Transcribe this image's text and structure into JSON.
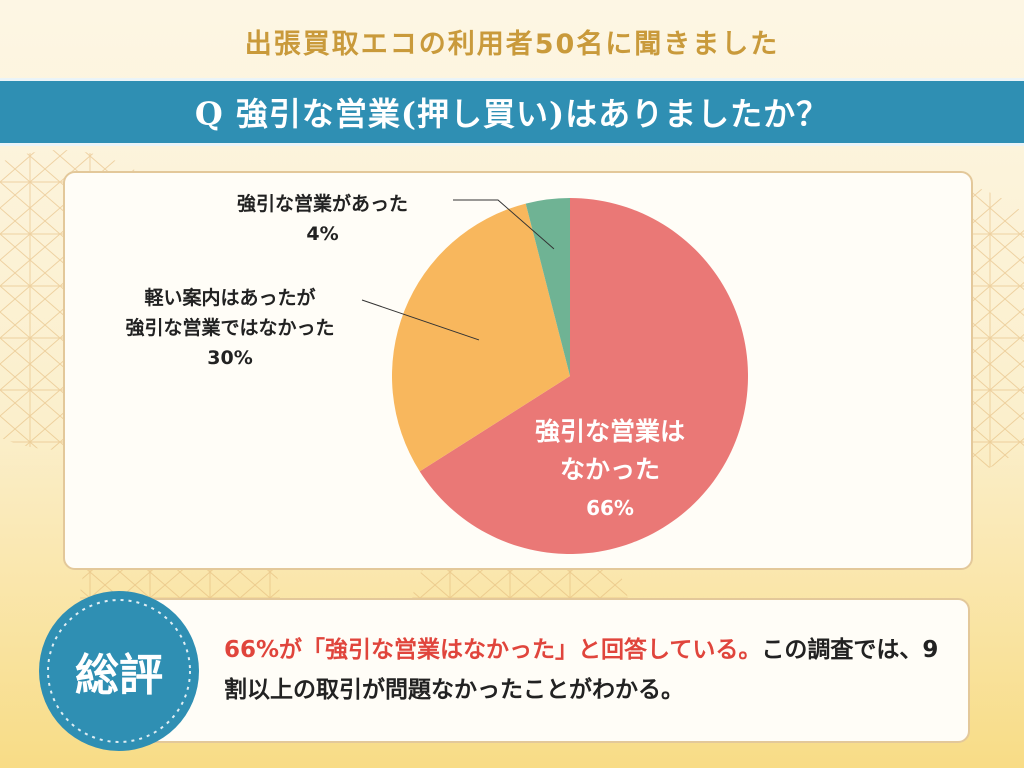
{
  "header": {
    "survey_title": "出張買取エコの利用者50名に聞きました",
    "question": "Q 強引な営業(押し買い)はありましたか？"
  },
  "colors": {
    "question_bar": "#2f8fb3",
    "title_gold": "#c99a3b",
    "slice_none": "#ea7876",
    "slice_light": "#f8b75d",
    "slice_yes": "#6fb394",
    "highlight_red": "#e0453c"
  },
  "chart_data": {
    "type": "pie",
    "title": "",
    "slices": [
      {
        "label": "強引な営業はなかった",
        "value": 66,
        "display": "66%"
      },
      {
        "label": "軽い案内はあったが強引な営業ではなかった",
        "value": 30,
        "display": "30%"
      },
      {
        "label": "強引な営業があった",
        "value": 4,
        "display": "4%"
      }
    ],
    "labels": {
      "none": {
        "line1": "強引な営業は",
        "line2": "なかった",
        "pct": "66%"
      },
      "light": {
        "line1": "軽い案内はあったが",
        "line2": "強引な営業ではなかった",
        "pct": "30%"
      },
      "yes": {
        "line1": "強引な営業があった",
        "pct": "4%"
      }
    },
    "start_angle": "12 o'clock",
    "direction": "clockwise"
  },
  "summary": {
    "badge": "総評",
    "highlight": "66%が「強引な営業はなかった」と回答している。",
    "rest": "この調査では、9割以上の取引が問題なかったことがわかる。"
  }
}
